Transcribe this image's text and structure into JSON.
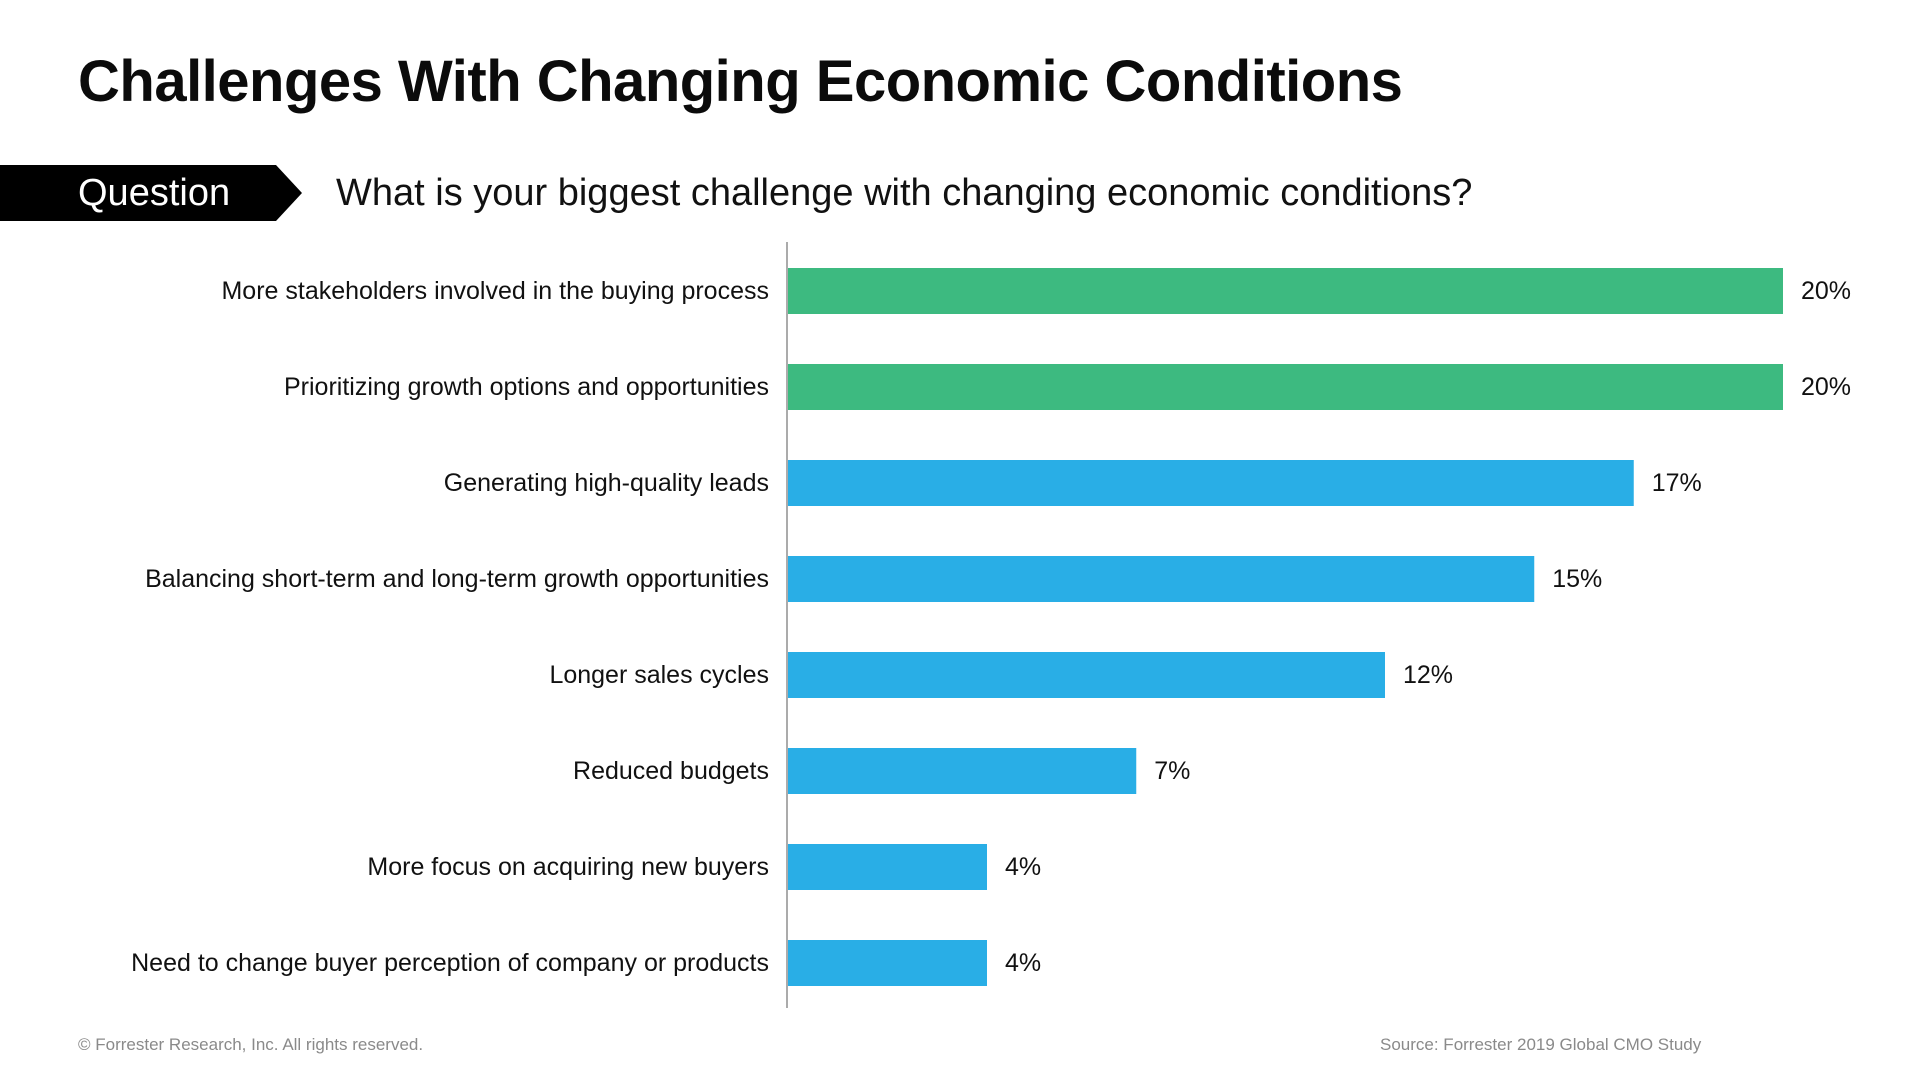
{
  "title": "Challenges With Changing Economic Conditions",
  "question": {
    "tag_label": "Question",
    "text": "What is your biggest challenge with changing economic conditions?"
  },
  "footer": {
    "copyright": "© Forrester Research, Inc. All rights reserved.",
    "source": "Source: Forrester 2019 Global CMO Study"
  },
  "colors": {
    "highlight_bar": "#3dba80",
    "standard_bar": "#29aee6",
    "axis": "#8f8f8f",
    "tag_background": "#000000"
  },
  "chart_data": {
    "type": "bar",
    "orientation": "horizontal",
    "categories": [
      "More stakeholders involved in the buying process",
      "Prioritizing growth options and opportunities",
      "Generating high-quality leads",
      "Balancing short-term and long-term growth opportunities",
      "Longer sales cycles",
      "Reduced budgets",
      "More focus on acquiring new buyers",
      "Need to change buyer perception of company or products"
    ],
    "values": [
      20,
      20,
      17,
      15,
      12,
      7,
      4,
      4
    ],
    "value_labels": [
      "20%",
      "20%",
      "17%",
      "15%",
      "12%",
      "7%",
      "4%",
      "4%"
    ],
    "highlighted": [
      true,
      true,
      false,
      false,
      false,
      false,
      false,
      false
    ],
    "unit": "%",
    "xlim": [
      0,
      20
    ],
    "grid": false,
    "legend": "none"
  }
}
